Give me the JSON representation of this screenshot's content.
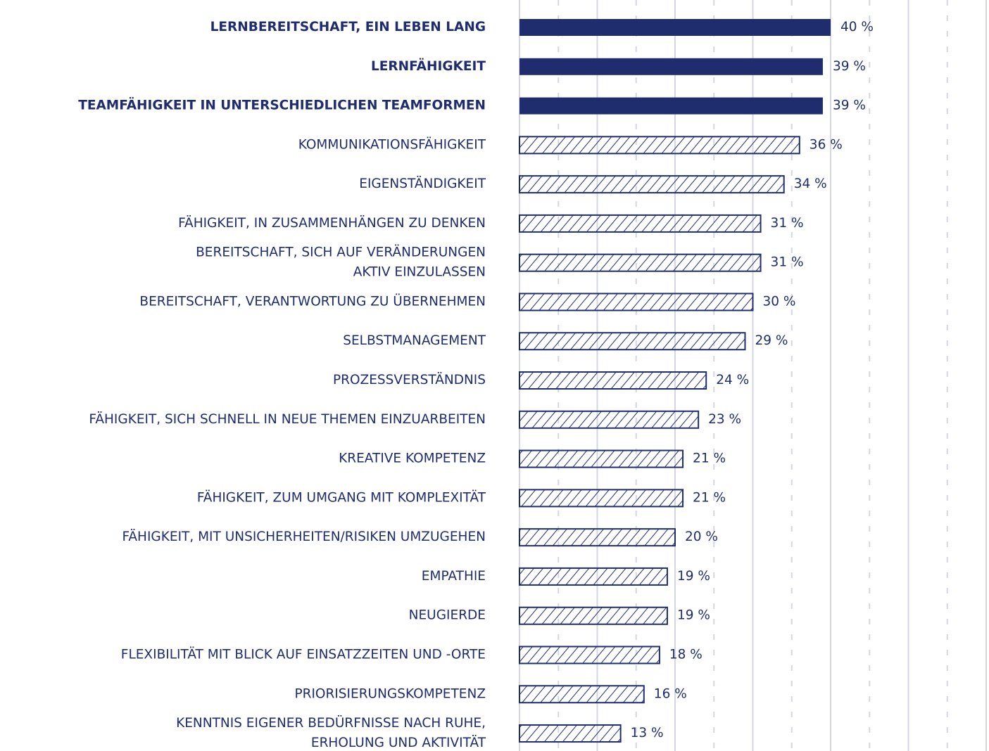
{
  "chart_data": {
    "type": "barh",
    "categories": [
      "LERNBEREITSCHAFT, EIN LEBEN LANG",
      "LERNFÄHIGKEIT",
      "TEAMFÄHIGKEIT IN UNTERSCHIEDLICHEN TEAMFORMEN",
      "KOMMUNIKATIONSFÄHIGKEIT",
      "EIGENSTÄNDIGKEIT",
      "FÄHIGKEIT, IN ZUSAMMENHÄNGEN ZU DENKEN",
      "BEREITSCHAFT, SICH AUF VERÄNDERUNGEN\nAKTIV EINZULASSEN",
      "BEREITSCHAFT, VERANTWORTUNG ZU ÜBERNEHMEN",
      "SELBSTMANAGEMENT",
      "PROZESSVERSTÄNDNIS",
      "FÄHIGKEIT, SICH SCHNELL IN NEUE THEMEN EINZUARBEITEN",
      "KREATIVE KOMPETENZ",
      "FÄHIGKEIT, ZUM UMGANG MIT KOMPLEXITÄT",
      "FÄHIGKEIT, MIT UNSICHERHEITEN/RISIKEN UMZUGEHEN",
      "EMPATHIE",
      "NEUGIERDE",
      "FLEXIBILITÄT MIT BLICK AUF EINSATZZEITEN UND -ORTE",
      "PRIORISIERUNGSKOMPETENZ",
      "KENNTNIS EIGENER BEDÜRFNISSE NACH RUHE,\nERHOLUNG UND AKTIVITÄT"
    ],
    "values": [
      40,
      39,
      39,
      36,
      34,
      31,
      31,
      30,
      29,
      24,
      23,
      21,
      21,
      20,
      19,
      19,
      18,
      16,
      13
    ],
    "value_labels": [
      "40 %",
      "39 %",
      "39 %",
      "36 %",
      "34 %",
      "31 %",
      "31 %",
      "30 %",
      "29 %",
      "24 %",
      "23 %",
      "21 %",
      "21 %",
      "20 %",
      "19 %",
      "19 %",
      "18 %",
      "16 %",
      "13 %"
    ],
    "bar_styles": [
      "solid",
      "solid",
      "solid",
      "hatched",
      "hatched",
      "hatched",
      "hatched",
      "hatched",
      "hatched",
      "hatched",
      "hatched",
      "hatched",
      "hatched",
      "hatched",
      "hatched",
      "hatched",
      "hatched",
      "hatched",
      "hatched"
    ],
    "color": "#1f2d6e",
    "grid_color": "#d4d7e2",
    "xlim": [
      0,
      60
    ],
    "xticks": [
      0,
      10,
      20,
      30,
      40,
      50,
      60
    ],
    "minor_xticks": [
      5,
      15,
      25,
      35,
      45,
      55
    ],
    "grid": true
  }
}
